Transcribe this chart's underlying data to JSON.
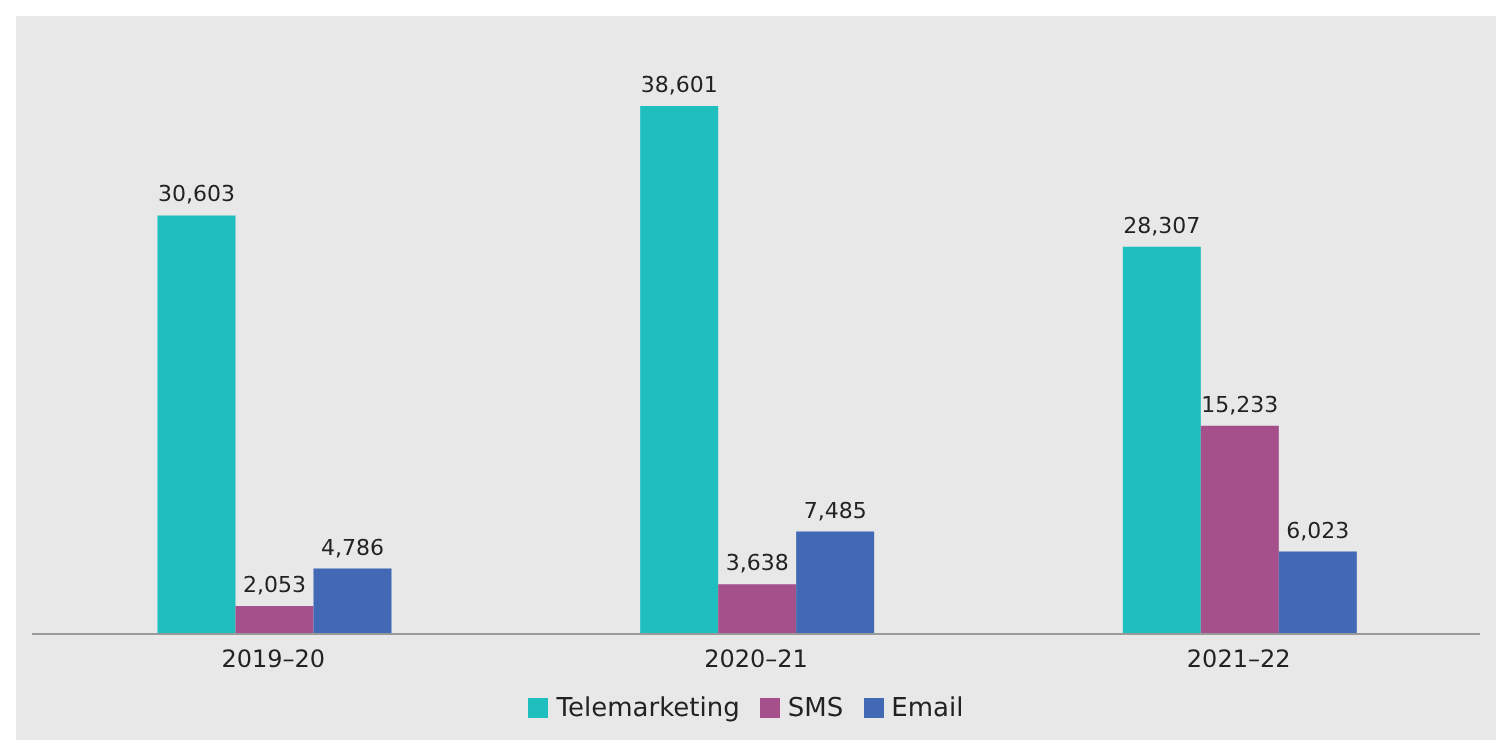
{
  "chart_data": {
    "type": "bar",
    "categories": [
      "2019–20",
      "2020–21",
      "2021–22"
    ],
    "series": [
      {
        "name": "Telemarketing",
        "color": "#1fbfbf",
        "values": [
          30603,
          38601,
          28307
        ],
        "value_labels": [
          "30,603",
          "38,601",
          "28,307"
        ]
      },
      {
        "name": "SMS",
        "color": "#a5508a",
        "values": [
          2053,
          3638,
          15233
        ],
        "value_labels": [
          "2,053",
          "3,638",
          "15,233"
        ]
      },
      {
        "name": "Email",
        "color": "#4169b5",
        "values": [
          4786,
          7485,
          6023
        ],
        "value_labels": [
          "4,786",
          "7,485",
          "6,023"
        ]
      }
    ],
    "legend": "bottom",
    "grid": false
  }
}
